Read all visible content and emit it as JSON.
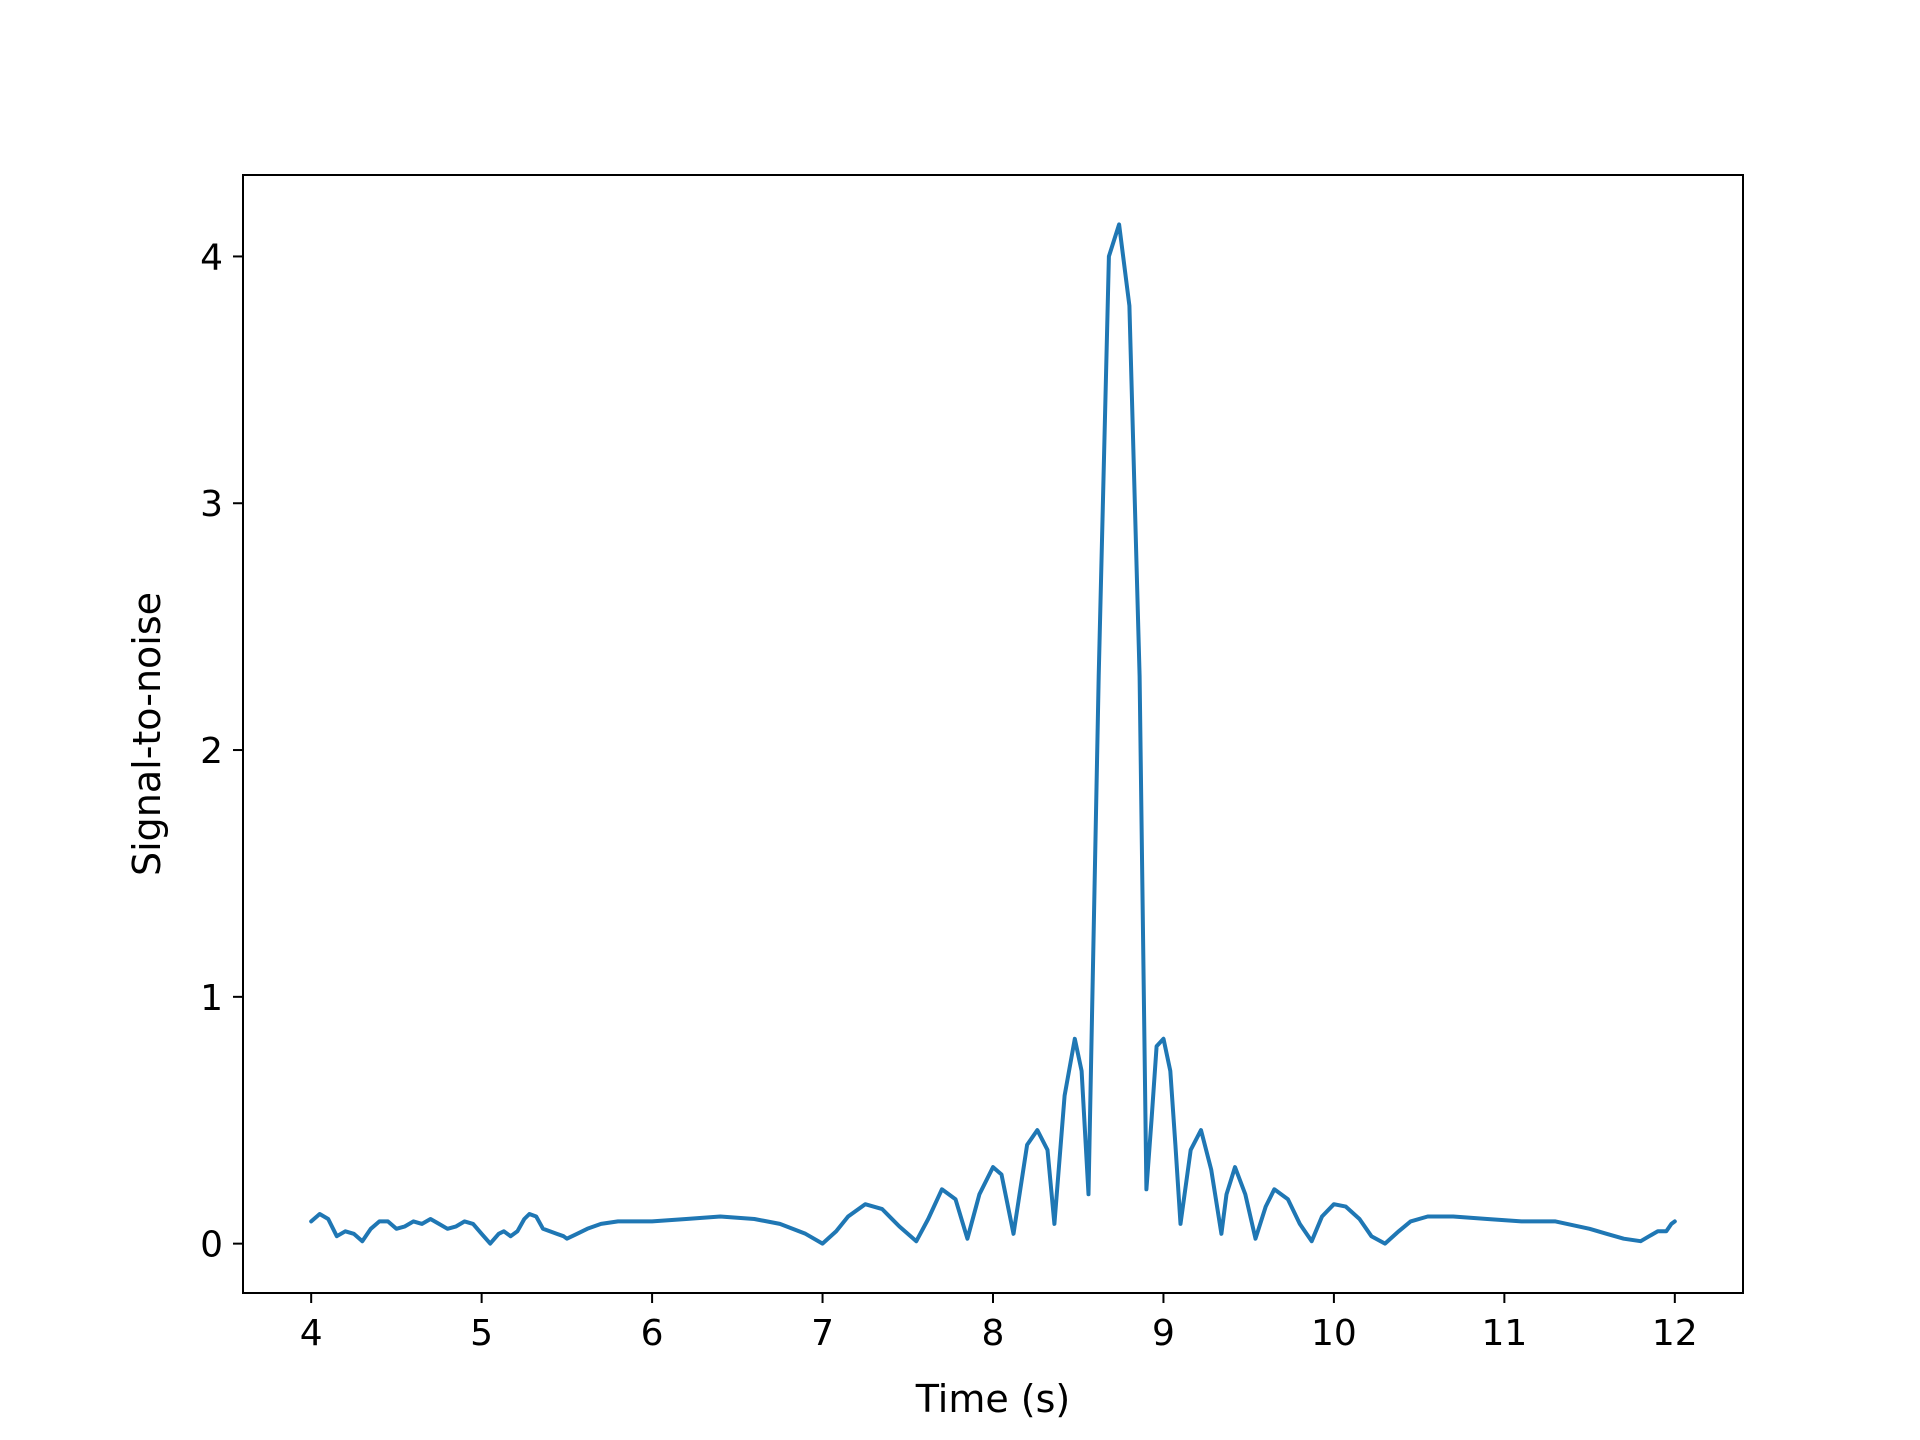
{
  "chart_data": {
    "type": "line",
    "title": "",
    "xlabel": "Time (s)",
    "ylabel": "Signal-to-noise",
    "xlim": [
      3.6,
      12.4
    ],
    "ylim": [
      -0.2,
      4.33
    ],
    "xticks": [
      4,
      5,
      6,
      7,
      8,
      9,
      10,
      11,
      12
    ],
    "yticks": [
      0,
      1,
      2,
      3,
      4
    ],
    "grid": false,
    "legend": "none",
    "colors": {
      "line": "#1f77b4",
      "axes": "#000000",
      "background": "#ffffff"
    },
    "series": [
      {
        "x": [
          4.0,
          4.05,
          4.1,
          4.15,
          4.2,
          4.25,
          4.3,
          4.35,
          4.4,
          4.45,
          4.5,
          4.55,
          4.6,
          4.65,
          4.7,
          4.75,
          4.8,
          4.85,
          4.9,
          4.95,
          5.0,
          5.05,
          5.1,
          5.13,
          5.17,
          5.21,
          5.25,
          5.28,
          5.32,
          5.36,
          5.4,
          5.44,
          5.48,
          5.5,
          5.56,
          5.62,
          5.7,
          5.8,
          5.9,
          6.0,
          6.2,
          6.4,
          6.6,
          6.75,
          6.9,
          7.0,
          7.08,
          7.15,
          7.25,
          7.35,
          7.45,
          7.55,
          7.62,
          7.7,
          7.78,
          7.85,
          7.92,
          8.0,
          8.05,
          8.12,
          8.2,
          8.26,
          8.32,
          8.36,
          8.42,
          8.48,
          8.52,
          8.56,
          8.62,
          8.68,
          8.74,
          8.8,
          8.86,
          8.9,
          8.93,
          8.96,
          9.0,
          9.04,
          9.07,
          9.1,
          9.16,
          9.22,
          9.28,
          9.34,
          9.37,
          9.42,
          9.48,
          9.54,
          9.6,
          9.65,
          9.73,
          9.8,
          9.87,
          9.93,
          10.0,
          10.07,
          10.15,
          10.22,
          10.3,
          10.38,
          10.45,
          10.55,
          10.7,
          10.9,
          11.1,
          11.3,
          11.5,
          11.6,
          11.7,
          11.8,
          11.85,
          11.9,
          11.95,
          11.98,
          12.0
        ],
        "values": [
          0.09,
          0.12,
          0.1,
          0.03,
          0.05,
          0.04,
          0.01,
          0.06,
          0.09,
          0.09,
          0.06,
          0.07,
          0.09,
          0.08,
          0.1,
          0.08,
          0.06,
          0.07,
          0.09,
          0.08,
          0.04,
          0.0,
          0.04,
          0.05,
          0.03,
          0.05,
          0.1,
          0.12,
          0.11,
          0.06,
          0.05,
          0.04,
          0.03,
          0.02,
          0.04,
          0.06,
          0.08,
          0.09,
          0.09,
          0.09,
          0.1,
          0.11,
          0.1,
          0.08,
          0.04,
          0.0,
          0.05,
          0.11,
          0.16,
          0.14,
          0.07,
          0.01,
          0.1,
          0.22,
          0.18,
          0.02,
          0.2,
          0.31,
          0.28,
          0.04,
          0.4,
          0.46,
          0.38,
          0.08,
          0.6,
          0.83,
          0.7,
          0.2,
          2.3,
          4.0,
          4.13,
          3.8,
          2.3,
          0.22,
          0.5,
          0.8,
          0.83,
          0.7,
          0.4,
          0.08,
          0.38,
          0.46,
          0.3,
          0.04,
          0.2,
          0.31,
          0.2,
          0.02,
          0.15,
          0.22,
          0.18,
          0.08,
          0.01,
          0.11,
          0.16,
          0.15,
          0.1,
          0.03,
          0.0,
          0.05,
          0.09,
          0.11,
          0.11,
          0.1,
          0.09,
          0.09,
          0.06,
          0.04,
          0.02,
          0.01,
          0.03,
          0.05,
          0.05,
          0.08,
          0.09
        ]
      }
    ]
  }
}
